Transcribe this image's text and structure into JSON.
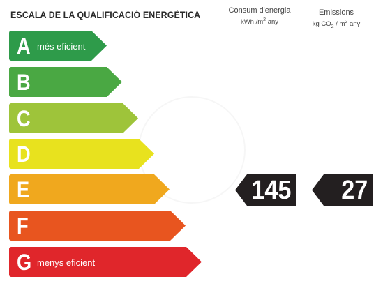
{
  "header": {
    "title": "ESCALA DE LA QUALIFICACIÓ ENERGÈTICA",
    "consumption": {
      "label": "Consum d'energia",
      "unit_pre": "kWh /m",
      "unit_sup": "2",
      "unit_post": " any"
    },
    "emissions": {
      "label": "Emissions",
      "unit_a": "kg CO",
      "unit_sub": "2",
      "unit_b": " / m",
      "unit_sup": "2",
      "unit_c": " any"
    }
  },
  "scale": [
    {
      "letter": "A",
      "text": "més eficient",
      "color": "#2e9b4a"
    },
    {
      "letter": "B",
      "text": "",
      "color": "#4aa843"
    },
    {
      "letter": "C",
      "text": "",
      "color": "#9ec43a"
    },
    {
      "letter": "D",
      "text": "",
      "color": "#e8e21e"
    },
    {
      "letter": "E",
      "text": "",
      "color": "#f0a81e"
    },
    {
      "letter": "F",
      "text": "",
      "color": "#e8551f"
    },
    {
      "letter": "G",
      "text": "menys eficient",
      "color": "#e0262b"
    }
  ],
  "rating": {
    "class": "E",
    "consumption_value": "145",
    "emissions_value": "27"
  }
}
